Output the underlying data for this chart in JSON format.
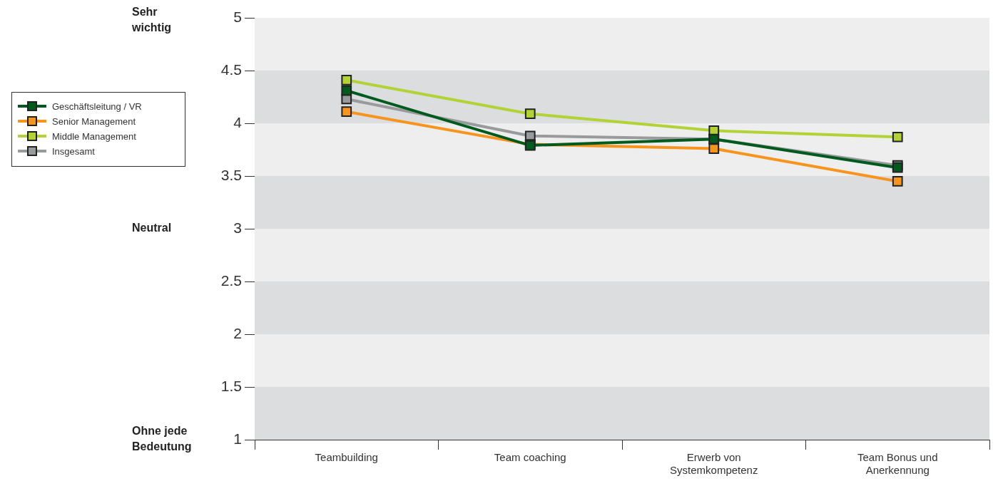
{
  "chart_data": {
    "type": "line",
    "categories": [
      "Teambuilding",
      "Team coaching",
      "Erwerb von Systemkompetenz",
      "Team Bonus und Anerkennung"
    ],
    "series": [
      {
        "name": "Geschäftsleitung / VR",
        "color": "#005a1e",
        "values": [
          4.31,
          3.79,
          3.85,
          3.58
        ]
      },
      {
        "name": "Senior Management",
        "color": "#f7941d",
        "values": [
          4.11,
          3.8,
          3.76,
          3.45
        ]
      },
      {
        "name": "Middle Management",
        "color": "#b2d235",
        "values": [
          4.41,
          4.09,
          3.93,
          3.87
        ]
      },
      {
        "name": "Insgesamt",
        "color": "#999a9c",
        "values": [
          4.23,
          3.88,
          3.85,
          3.6
        ]
      }
    ],
    "ylim": [
      1,
      5
    ],
    "yticks": [
      1,
      1.5,
      2,
      2.5,
      3,
      3.5,
      4,
      4.5,
      5
    ],
    "bands": [
      {
        "axis": "y",
        "from": 1,
        "to": 1.5,
        "color": "#dcdddf"
      },
      {
        "axis": "y",
        "from": 2,
        "to": 2.5,
        "color": "#dcdddf"
      },
      {
        "axis": "y",
        "from": 3,
        "to": 3.5,
        "color": "#dcdddf"
      },
      {
        "axis": "y",
        "from": 4,
        "to": 4.5,
        "color": "#dcdddf"
      }
    ],
    "annotations": [
      "Sehr wichtig",
      "Neutral",
      "Ohne jede Bedeutung"
    ],
    "legend": "left",
    "marker": "square",
    "line_style": "solid"
  }
}
